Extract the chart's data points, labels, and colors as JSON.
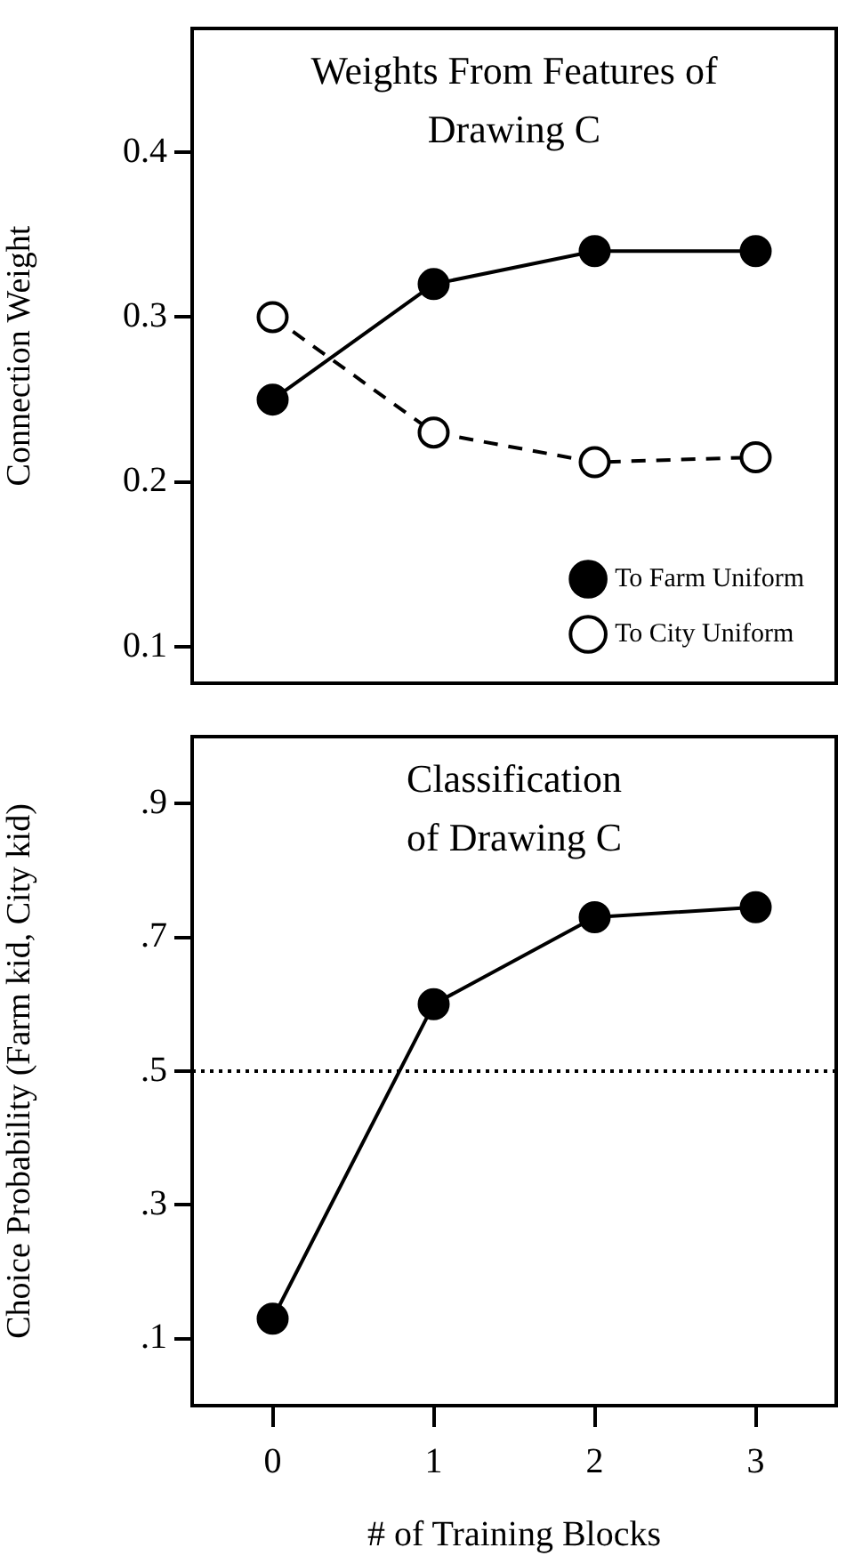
{
  "chart_data": [
    {
      "type": "line",
      "title": "Weights From Features of\nDrawing C",
      "ylabel": "Connection Weight",
      "x": [
        0,
        1,
        2,
        3
      ],
      "xlim": [
        -0.5,
        3.5
      ],
      "ylim": [
        0.078,
        0.475
      ],
      "yticks": [
        0.1,
        0.2,
        0.3,
        0.4
      ],
      "tick_labels": "y",
      "legend": "bottom right",
      "marker": "circle",
      "series": [
        {
          "name": "To Farm Uniform",
          "color": "#000000",
          "line_style": "solid",
          "values": [
            0.25,
            0.32,
            0.34,
            0.34
          ]
        },
        {
          "name": "To City Uniform",
          "color": "#000000",
          "line_style": "dashed",
          "values": [
            0.3,
            0.23,
            0.212,
            0.215
          ]
        }
      ]
    },
    {
      "type": "line",
      "title": "Classification\nof Drawing C",
      "xlabel": "# of Training Blocks",
      "ylabel": "Choice Probability (Farm kid, City kid)",
      "x": [
        0,
        1,
        2,
        3
      ],
      "xlim": [
        -0.5,
        3.5
      ],
      "xticks": [
        0,
        1,
        2,
        3
      ],
      "ylim": [
        0,
        1
      ],
      "yticks": [
        {
          "value": 0.1,
          "label": ".1"
        },
        {
          "value": 0.3,
          "label": ".3"
        },
        {
          "value": 0.5,
          "label": ".5"
        },
        {
          "value": 0.7,
          "label": ".7"
        },
        {
          "value": 0.9,
          "label": ".9"
        }
      ],
      "marker": "circle",
      "line_style": "solid",
      "ref_lines": [
        {
          "axis": "y",
          "value": 0.5,
          "line_style": "dotted",
          "color": "#000000"
        }
      ],
      "series": [
        {
          "color": "#000000",
          "values": [
            0.13,
            0.6,
            0.73,
            0.745
          ]
        }
      ]
    }
  ]
}
